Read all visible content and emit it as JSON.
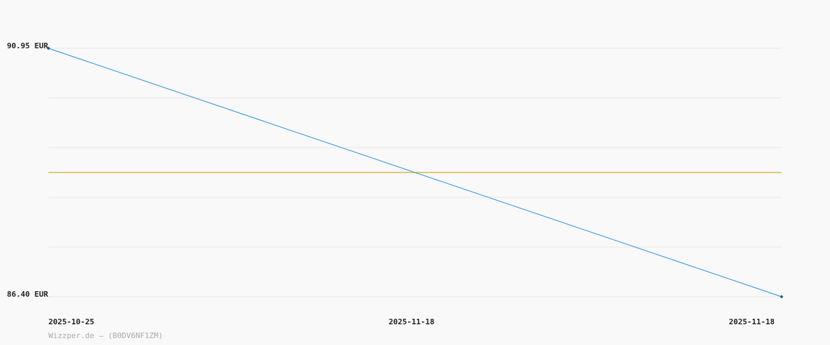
{
  "chart_data": {
    "type": "line",
    "x": [
      "2025-10-25",
      "2025-11-18"
    ],
    "series": [
      {
        "color": "#1f8dd6",
        "values": [
          90.95,
          86.4
        ]
      }
    ],
    "ylim": [
      86.4,
      90.95
    ],
    "yticks": [
      {
        "value": 86.4,
        "label": "86.40 EUR"
      },
      {
        "value": 90.95,
        "label": "90.95 EUR"
      }
    ],
    "ygrid": [
      87.31,
      88.22,
      89.13,
      90.04
    ],
    "xlim": [
      "2025-10-25",
      "2025-11-18"
    ],
    "xtick_labels": [
      "2025-10-25",
      "2025-11-18",
      "2025-11-18"
    ],
    "reference_line": {
      "value": 88.675,
      "color": "#c8920a"
    },
    "grid": true,
    "footer": "Wizzper.de – (B0DV6NF1ZM)"
  }
}
